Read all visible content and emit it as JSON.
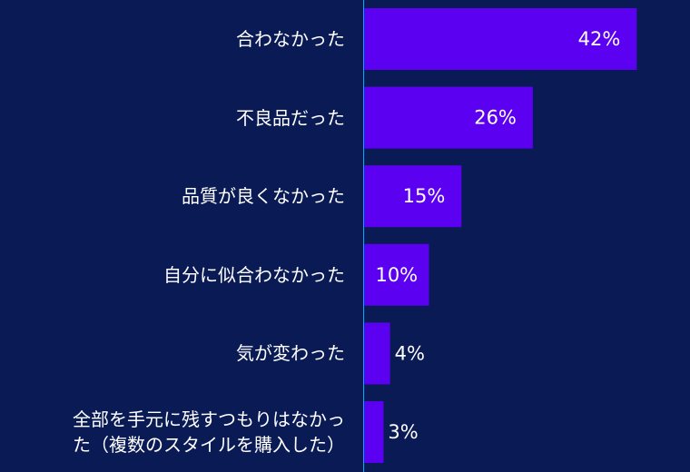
{
  "colors": {
    "background": "#0a1a55",
    "bar": "#5b00f0",
    "axis": "#00aaff",
    "text": "#ffffff"
  },
  "chart_data": {
    "type": "bar",
    "orientation": "horizontal",
    "categories": [
      "合わなかった",
      "不良品だった",
      "品質が良くなかった",
      "自分に似合わなかった",
      "気が変わった",
      "全部を手元に残すつもりはなかった（複数のスタイルを購入した）"
    ],
    "category_lines": [
      [
        "合わなかった"
      ],
      [
        "不良品だった"
      ],
      [
        "品質が良くなかった"
      ],
      [
        "自分に似合わなかった"
      ],
      [
        "気が変わった"
      ],
      [
        "全部を手元に残すつもりはなかっ",
        "た（複数のスタイルを購入した）"
      ]
    ],
    "values": [
      42,
      26,
      15,
      10,
      4,
      3
    ],
    "data_labels": [
      "42%",
      "26%",
      "15%",
      "10%",
      "4%",
      "3%"
    ],
    "unit": "%",
    "xlim": [
      0,
      50
    ],
    "grid": false,
    "legend": "none"
  }
}
